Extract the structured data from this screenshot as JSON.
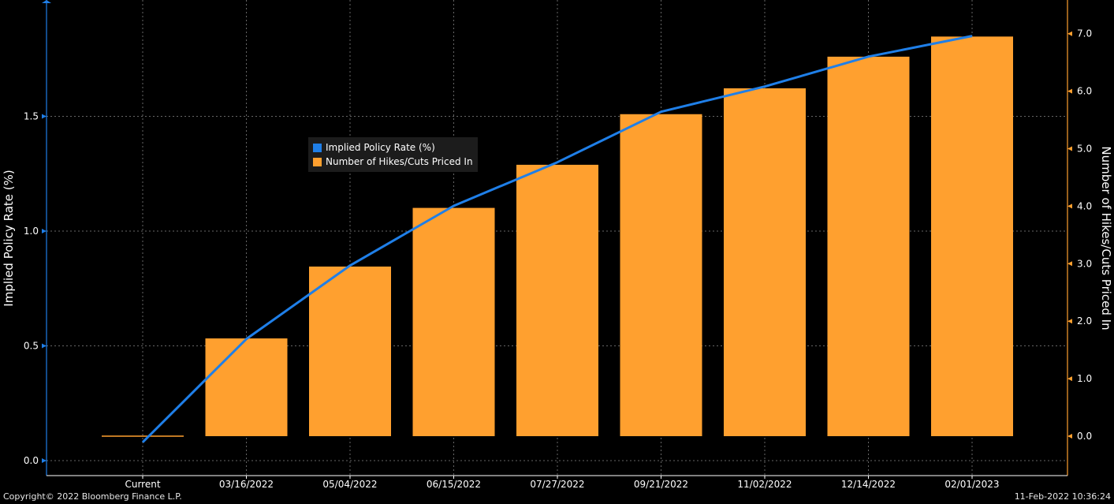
{
  "chart_data": {
    "type": "bar+line",
    "categories": [
      "Current",
      "03/16/2022",
      "05/04/2022",
      "06/15/2022",
      "07/27/2022",
      "09/21/2022",
      "11/02/2022",
      "12/14/2022",
      "02/01/2023"
    ],
    "series": [
      {
        "name": "Implied Policy Rate (%)",
        "type": "line",
        "axis": "left",
        "color": "#1f7fe8",
        "values": [
          0.08,
          0.53,
          0.85,
          1.11,
          1.3,
          1.52,
          1.63,
          1.76,
          1.85
        ]
      },
      {
        "name": "Number of Hikes/Cuts Priced In",
        "type": "bar",
        "axis": "right",
        "color": "#ffa02f",
        "values": [
          0.0,
          1.7,
          2.95,
          3.97,
          4.72,
          5.6,
          6.05,
          6.6,
          6.95
        ]
      }
    ],
    "left_axis": {
      "label": "Implied Policy Rate (%)",
      "ticks": [
        "0.0",
        "0.5",
        "1.0",
        "1.5"
      ],
      "ylim": [
        -0.05,
        2.0
      ]
    },
    "right_axis": {
      "label": "Number of Hikes/Cuts Priced In",
      "ticks": [
        "0.0",
        "1.0",
        "2.0",
        "3.0",
        "4.0",
        "5.0",
        "6.0",
        "7.0"
      ],
      "ylim": [
        -0.7,
        7.6
      ]
    },
    "grid": true,
    "legend_position": "upper-center"
  },
  "footer": {
    "copyright": "Copyright© 2022 Bloomberg Finance L.P.",
    "timestamp": "11-Feb-2022 10:36:24"
  }
}
